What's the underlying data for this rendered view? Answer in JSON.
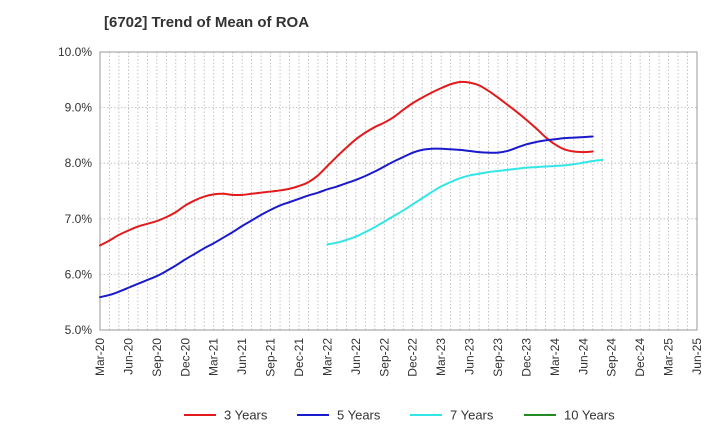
{
  "chart_data": {
    "type": "line",
    "title": "[6702]  Trend of Mean of ROA",
    "x_labels": [
      "Mar-20",
      "Jun-20",
      "Sep-20",
      "Dec-20",
      "Mar-21",
      "Jun-21",
      "Sep-21",
      "Dec-21",
      "Mar-22",
      "Jun-22",
      "Sep-22",
      "Dec-22",
      "Mar-23",
      "Jun-23",
      "Sep-23",
      "Dec-23",
      "Mar-24",
      "Jun-24",
      "Sep-24",
      "Dec-24",
      "Mar-25",
      "Jun-25"
    ],
    "y_ticks": [
      "5.0%",
      "6.0%",
      "7.0%",
      "8.0%",
      "9.0%",
      "10.0%"
    ],
    "ylim": [
      5.0,
      10.0
    ],
    "grid": true,
    "legend_position": "bottom",
    "series": [
      {
        "name": "3 Years",
        "color": "#e31a1c",
        "start_month_index": 0,
        "values": [
          6.52,
          6.61,
          6.71,
          6.79,
          6.86,
          6.91,
          6.96,
          7.03,
          7.12,
          7.24,
          7.33,
          7.4,
          7.44,
          7.45,
          7.43,
          7.43,
          7.45,
          7.47,
          7.49,
          7.51,
          7.54,
          7.59,
          7.66,
          7.78,
          7.95,
          8.12,
          8.28,
          8.43,
          8.55,
          8.65,
          8.73,
          8.83,
          8.96,
          9.08,
          9.18,
          9.27,
          9.35,
          9.42,
          9.46,
          9.45,
          9.4,
          9.3,
          9.18,
          9.05,
          8.92,
          8.78,
          8.63,
          8.47,
          8.34,
          8.25,
          8.21,
          8.2,
          8.21
        ]
      },
      {
        "name": "5 Years",
        "color": "#1a1acd",
        "start_month_index": 0,
        "values": [
          5.59,
          5.63,
          5.69,
          5.76,
          5.83,
          5.9,
          5.97,
          6.06,
          6.16,
          6.27,
          6.37,
          6.47,
          6.56,
          6.66,
          6.76,
          6.87,
          6.97,
          7.07,
          7.16,
          7.24,
          7.3,
          7.36,
          7.42,
          7.47,
          7.53,
          7.58,
          7.64,
          7.7,
          7.77,
          7.85,
          7.94,
          8.03,
          8.11,
          8.19,
          8.24,
          8.26,
          8.26,
          8.25,
          8.24,
          8.22,
          8.2,
          8.19,
          8.19,
          8.22,
          8.28,
          8.34,
          8.38,
          8.41,
          8.43,
          8.45,
          8.46,
          8.47,
          8.48
        ]
      },
      {
        "name": "7 Years",
        "color": "#33e6e6",
        "start_month_index": 24,
        "values": [
          6.54,
          6.57,
          6.62,
          6.68,
          6.76,
          6.85,
          6.95,
          7.05,
          7.15,
          7.26,
          7.37,
          7.48,
          7.58,
          7.66,
          7.73,
          7.78,
          7.81,
          7.84,
          7.86,
          7.88,
          7.9,
          7.92,
          7.93,
          7.94,
          7.95,
          7.96,
          7.98,
          8.01,
          8.04,
          8.06
        ]
      },
      {
        "name": "10 Years",
        "color": "#228b22",
        "start_month_index": 0,
        "values": []
      }
    ]
  }
}
